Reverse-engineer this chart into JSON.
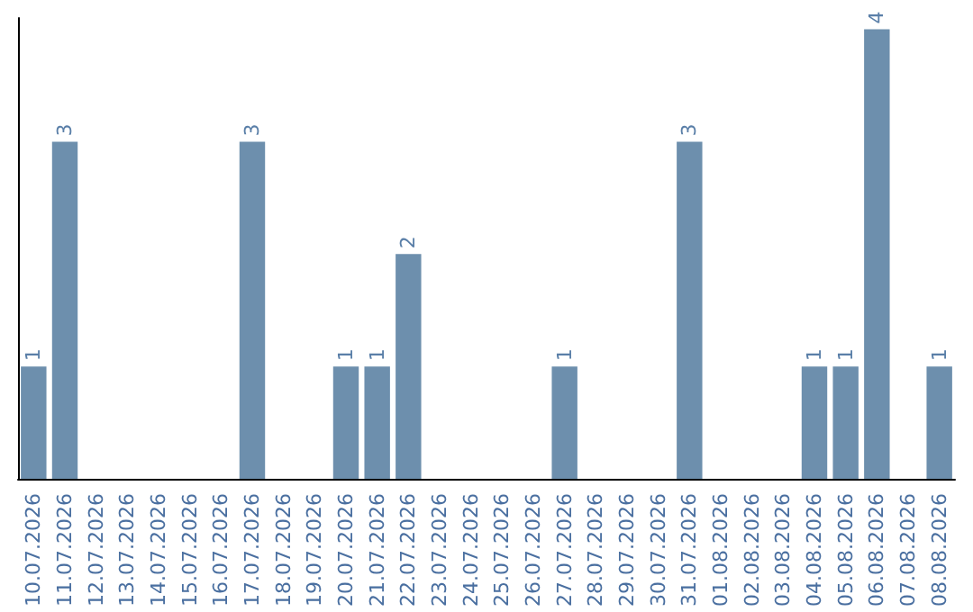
{
  "chart_data": {
    "type": "bar",
    "categories": [
      "10.07.2026",
      "11.07.2026",
      "12.07.2026",
      "13.07.2026",
      "14.07.2026",
      "15.07.2026",
      "16.07.2026",
      "17.07.2026",
      "18.07.2026",
      "19.07.2026",
      "20.07.2026",
      "21.07.2026",
      "22.07.2026",
      "23.07.2026",
      "24.07.2026",
      "25.07.2026",
      "26.07.2026",
      "27.07.2026",
      "28.07.2026",
      "29.07.2026",
      "30.07.2026",
      "31.07.2026",
      "01.08.2026",
      "02.08.2026",
      "03.08.2026",
      "04.08.2026",
      "05.08.2026",
      "06.08.2026",
      "07.08.2026",
      "08.08.2026"
    ],
    "values": [
      1,
      3,
      0,
      0,
      0,
      0,
      0,
      3,
      0,
      0,
      1,
      1,
      2,
      0,
      0,
      0,
      0,
      1,
      0,
      0,
      0,
      3,
      0,
      0,
      0,
      1,
      1,
      4,
      0,
      1
    ],
    "value_labels": [
      "1",
      "3",
      null,
      null,
      null,
      null,
      null,
      "3",
      null,
      null,
      "1",
      "1",
      "2",
      null,
      null,
      null,
      null,
      "1",
      null,
      null,
      null,
      "3",
      null,
      null,
      null,
      "1",
      "1",
      "4",
      null,
      "1"
    ],
    "color": "#6d8fad",
    "ylim": [
      0,
      4.1
    ],
    "tick_labels": "x",
    "grid": false
  }
}
